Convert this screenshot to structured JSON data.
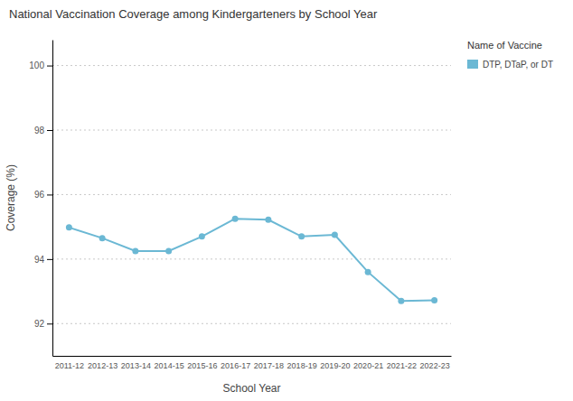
{
  "chart_data": {
    "type": "line",
    "title": "National Vaccination Coverage among Kindergarteners by School Year",
    "x_label": "School Year",
    "y_label": "Coverage (%)",
    "legend_title": "Name of Vaccine",
    "categories": [
      "2011-12",
      "2012-13",
      "2013-14",
      "2014-15",
      "2015-16",
      "2016-17",
      "2017-18",
      "2018-19",
      "2019-20",
      "2020-21",
      "2021-22",
      "2022-23"
    ],
    "series": [
      {
        "name": "DTP, DTaP, or DT",
        "color": "#6bb8d4",
        "marker": "circle",
        "line_style": "solid",
        "values": [
          94.98,
          94.65,
          94.25,
          94.25,
          94.7,
          95.25,
          95.22,
          94.7,
          94.75,
          93.6,
          92.7,
          92.72
        ]
      }
    ],
    "ylim": [
      91.0,
      100.8
    ],
    "yticks": [
      92,
      94,
      96,
      98,
      100
    ],
    "grid": true,
    "legend": "right"
  }
}
